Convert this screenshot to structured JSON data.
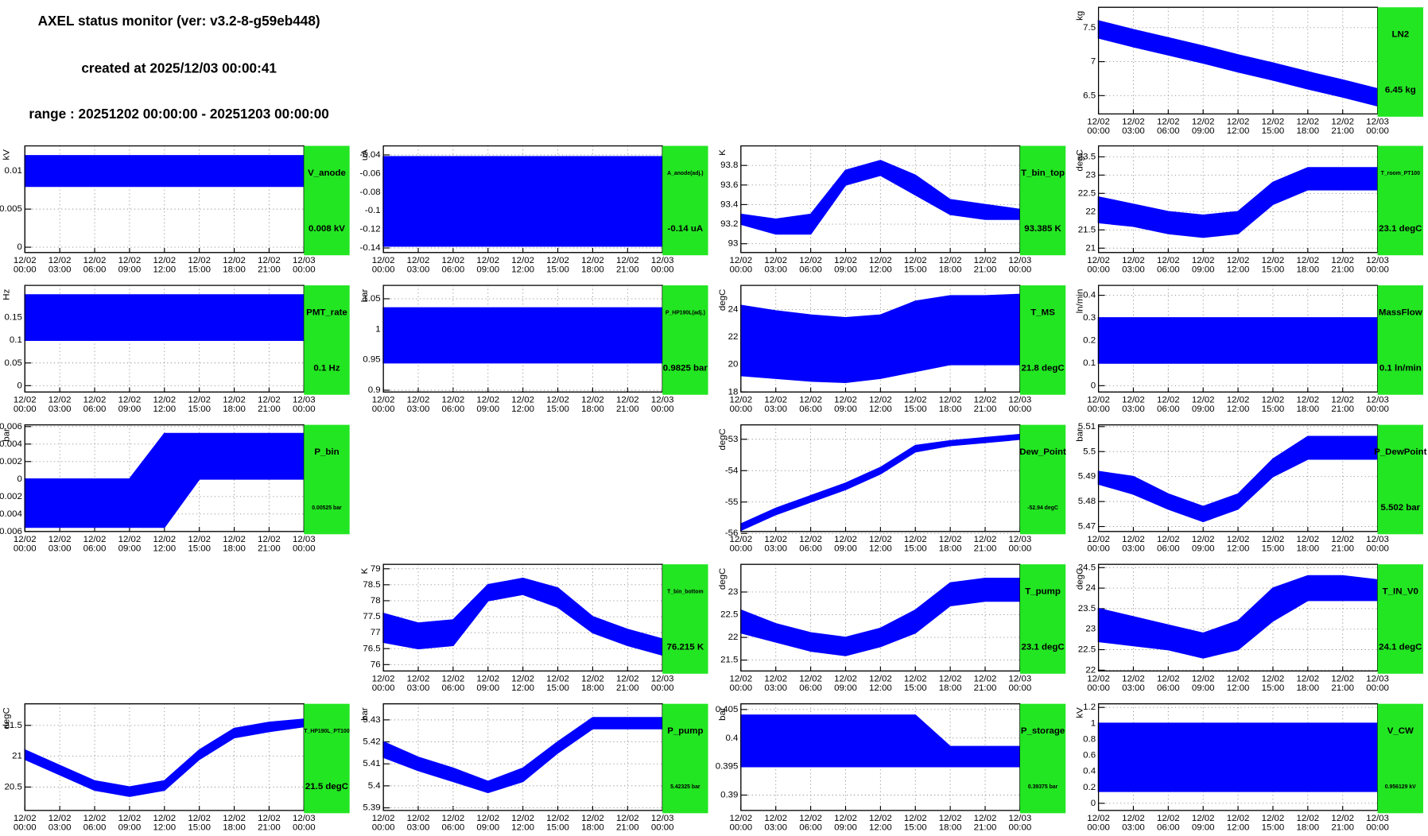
{
  "header": {
    "title": "AXEL status monitor (ver: v3.2-8-g59eb448)",
    "created": "created at 2025/12/03 00:00:41",
    "range": "range : 20251202 00:00:00 - 20251203 00:00:00"
  },
  "time_axis": {
    "xlim": [
      0,
      24
    ],
    "x": [
      0,
      3,
      6,
      9,
      12,
      15,
      18,
      21,
      24
    ],
    "xticks": [
      {
        "value": 0,
        "date": "12/02",
        "time": "00:00"
      },
      {
        "value": 3,
        "date": "12/02",
        "time": "03:00"
      },
      {
        "value": 6,
        "date": "12/02",
        "time": "06:00"
      },
      {
        "value": 9,
        "date": "12/02",
        "time": "09:00"
      },
      {
        "value": 12,
        "date": "12/02",
        "time": "12:00"
      },
      {
        "value": 15,
        "date": "12/02",
        "time": "15:00"
      },
      {
        "value": 18,
        "date": "12/02",
        "time": "18:00"
      },
      {
        "value": 21,
        "date": "12/02",
        "time": "21:00"
      },
      {
        "value": 24,
        "date": "12/03",
        "time": "00:00"
      }
    ]
  },
  "chart_data": [
    {
      "type": "band",
      "name": "LN2",
      "value_label": "6.45 kg",
      "unit": "kg",
      "color": "#0000ff",
      "status_color": "#22e622",
      "ylim": [
        6.23,
        7.8
      ],
      "yticks": [
        6.5,
        7,
        7.5
      ],
      "low": [
        7.35,
        7.22,
        7.1,
        6.98,
        6.85,
        6.73,
        6.6,
        6.48,
        6.35
      ],
      "high": [
        7.6,
        7.47,
        7.35,
        7.23,
        7.1,
        6.98,
        6.85,
        6.73,
        6.6
      ]
    },
    {
      "type": "band",
      "name": "V_anode",
      "value_label": "0.008 kV",
      "unit": "kV",
      "color": "#0000ff",
      "status_color": "#22e622",
      "ylim": [
        -0.0007,
        0.0133
      ],
      "yticks": [
        0,
        0.005,
        0.01
      ],
      "low": [
        0.008,
        0.008,
        0.008,
        0.008,
        0.008,
        0.008,
        0.008,
        0.008,
        0.008
      ],
      "high": [
        0.012,
        0.012,
        0.012,
        0.012,
        0.012,
        0.012,
        0.012,
        0.012,
        0.012
      ]
    },
    {
      "type": "band",
      "name": "A_anode(adj.)",
      "value_label": "-0.14 uA",
      "unit": "uA",
      "color": "#0000ff",
      "status_color": "#22e622",
      "ylim": [
        -0.1449,
        -0.0303
      ],
      "yticks": [
        -0.14,
        -0.12,
        -0.1,
        -0.08,
        -0.06,
        -0.04
      ],
      "low": [
        -0.138,
        -0.138,
        -0.138,
        -0.138,
        -0.138,
        -0.138,
        -0.138,
        -0.138,
        -0.138
      ],
      "high": [
        -0.042,
        -0.042,
        -0.042,
        -0.042,
        -0.042,
        -0.042,
        -0.042,
        -0.042,
        -0.042
      ]
    },
    {
      "type": "band",
      "name": "T_bin_top",
      "value_label": "93.385 K",
      "unit": "K",
      "color": "#0000ff",
      "status_color": "#22e622",
      "ylim": [
        92.91,
        94.0
      ],
      "yticks": [
        93,
        93.2,
        93.4,
        93.6,
        93.8
      ],
      "low": [
        93.2,
        93.1,
        93.1,
        93.6,
        93.7,
        93.5,
        93.3,
        93.25,
        93.25
      ],
      "high": [
        93.3,
        93.25,
        93.3,
        93.75,
        93.85,
        93.7,
        93.45,
        93.4,
        93.35
      ]
    },
    {
      "type": "band",
      "name": "T_room_PT100",
      "value_label": "23.1 degC",
      "unit": "degC",
      "color": "#0000ff",
      "status_color": "#22e622",
      "ylim": [
        20.88,
        23.8
      ],
      "yticks": [
        21,
        21.5,
        22,
        22.5,
        23,
        23.5
      ],
      "low": [
        21.7,
        21.6,
        21.4,
        21.3,
        21.4,
        22.2,
        22.6,
        22.6,
        22.6
      ],
      "high": [
        22.4,
        22.2,
        22.0,
        21.9,
        22.0,
        22.8,
        23.2,
        23.2,
        23.2
      ]
    },
    {
      "type": "band",
      "name": "PMT_rate",
      "value_label": "0.1 Hz",
      "unit": "Hz",
      "color": "#0000ff",
      "status_color": "#22e622",
      "ylim": [
        -0.014,
        0.221
      ],
      "yticks": [
        0,
        0.05,
        0.1,
        0.15
      ],
      "low": [
        0.1,
        0.1,
        0.1,
        0.1,
        0.1,
        0.1,
        0.1,
        0.1,
        0.1
      ],
      "high": [
        0.2,
        0.2,
        0.2,
        0.2,
        0.2,
        0.2,
        0.2,
        0.2,
        0.2
      ]
    },
    {
      "type": "band",
      "name": "P_HP190L(adj.)",
      "value_label": "0.9825 bar",
      "unit": "bar",
      "color": "#0000ff",
      "status_color": "#22e622",
      "ylim": [
        0.897,
        1.072
      ],
      "yticks": [
        0.9,
        0.95,
        1,
        1.05
      ],
      "low": [
        0.945,
        0.945,
        0.945,
        0.945,
        0.945,
        0.945,
        0.945,
        0.945,
        0.945
      ],
      "high": [
        1.035,
        1.035,
        1.035,
        1.035,
        1.035,
        1.035,
        1.035,
        1.035,
        1.035
      ]
    },
    {
      "type": "band",
      "name": "T_MS",
      "value_label": "21.8 degC",
      "unit": "degC",
      "color": "#0000ff",
      "status_color": "#22e622",
      "ylim": [
        18,
        25.76
      ],
      "yticks": [
        18,
        20,
        22,
        24
      ],
      "low": [
        19.2,
        19.0,
        18.8,
        18.7,
        19.0,
        19.5,
        20.0,
        20.0,
        20.0
      ],
      "high": [
        24.3,
        23.9,
        23.6,
        23.4,
        23.6,
        24.6,
        25.0,
        25.0,
        25.1
      ]
    },
    {
      "type": "band",
      "name": "MassFlow",
      "value_label": "0.1 ln/min",
      "unit": "ln/min",
      "color": "#0000ff",
      "status_color": "#22e622",
      "ylim": [
        -0.028,
        0.444
      ],
      "yticks": [
        0,
        0.1,
        0.2,
        0.3,
        0.4
      ],
      "low": [
        0.1,
        0.1,
        0.1,
        0.1,
        0.1,
        0.1,
        0.1,
        0.1,
        0.1
      ],
      "high": [
        0.3,
        0.3,
        0.3,
        0.3,
        0.3,
        0.3,
        0.3,
        0.3,
        0.3
      ]
    },
    {
      "type": "band",
      "name": "P_bin",
      "value_label": "0.00525 bar",
      "unit": "bar",
      "color": "#0000ff",
      "status_color": "#22e622",
      "ylim": [
        -0.006,
        0.0062
      ],
      "yticks": [
        -0.006,
        -0.004,
        -0.002,
        0,
        0.002,
        0.004,
        0.006
      ],
      "low": [
        -0.0055,
        -0.0055,
        -0.0055,
        -0.0055,
        -0.0055,
        0,
        0,
        0,
        0
      ],
      "high": [
        0,
        0,
        0,
        0,
        0.0052,
        0.0052,
        0.0052,
        0.0052,
        0.0052
      ]
    },
    {
      "type": "band",
      "name": "Dew_Point",
      "value_label": "-52.94 degC",
      "unit": "degC",
      "color": "#0000ff",
      "status_color": "#22e622",
      "ylim": [
        -55.94,
        -52.54
      ],
      "yticks": [
        -56,
        -55,
        -54,
        -53
      ],
      "low": [
        -55.9,
        -55.4,
        -55.0,
        -54.6,
        -54.1,
        -53.4,
        -53.2,
        -53.1,
        -53.0
      ],
      "high": [
        -55.7,
        -55.2,
        -54.8,
        -54.4,
        -53.9,
        -53.2,
        -53.05,
        -52.95,
        -52.85
      ]
    },
    {
      "type": "band",
      "name": "P_DewPoint",
      "value_label": "5.502 bar",
      "unit": "bar",
      "color": "#0000ff",
      "status_color": "#22e622",
      "ylim": [
        5.468,
        5.5107
      ],
      "yticks": [
        5.47,
        5.48,
        5.49,
        5.5,
        5.51
      ],
      "low": [
        5.487,
        5.483,
        5.477,
        5.472,
        5.477,
        5.49,
        5.497,
        5.497,
        5.497
      ],
      "high": [
        5.492,
        5.49,
        5.483,
        5.478,
        5.483,
        5.497,
        5.506,
        5.506,
        5.506
      ]
    },
    {
      "type": "band",
      "name": "T_bin_bottom",
      "value_label": "76.215 K",
      "unit": "K",
      "color": "#0000ff",
      "status_color": "#22e622",
      "ylim": [
        75.8,
        79.14
      ],
      "yticks": [
        76,
        76.5,
        77,
        77.5,
        78,
        78.5,
        79
      ],
      "low": [
        76.7,
        76.5,
        76.6,
        78.0,
        78.2,
        77.8,
        77.0,
        76.6,
        76.3
      ],
      "high": [
        77.6,
        77.3,
        77.4,
        78.5,
        78.7,
        78.4,
        77.5,
        77.1,
        76.8
      ]
    },
    {
      "type": "band",
      "name": "T_pump",
      "value_label": "23.1 degC",
      "unit": "degC",
      "color": "#0000ff",
      "status_color": "#22e622",
      "ylim": [
        21.26,
        23.61
      ],
      "yticks": [
        21.5,
        22,
        22.5,
        23
      ],
      "low": [
        22.1,
        21.9,
        21.7,
        21.6,
        21.8,
        22.1,
        22.7,
        22.8,
        22.8
      ],
      "high": [
        22.6,
        22.3,
        22.1,
        22.0,
        22.2,
        22.6,
        23.2,
        23.3,
        23.3
      ]
    },
    {
      "type": "band",
      "name": "T_IN_V0",
      "value_label": "24.1 degC",
      "unit": "degC",
      "color": "#0000ff",
      "status_color": "#22e622",
      "ylim": [
        21.98,
        24.58
      ],
      "yticks": [
        22,
        22.5,
        23,
        23.5,
        24,
        24.5
      ],
      "low": [
        22.7,
        22.6,
        22.5,
        22.3,
        22.5,
        23.2,
        23.7,
        23.7,
        23.7
      ],
      "high": [
        23.5,
        23.3,
        23.1,
        22.9,
        23.2,
        24.0,
        24.3,
        24.3,
        24.2
      ]
    },
    {
      "type": "band",
      "name": "T_HP190L_PT100",
      "value_label": "21.5 degC",
      "unit": "degC",
      "color": "#0000ff",
      "status_color": "#22e622",
      "ylim": [
        20.12,
        21.85
      ],
      "yticks": [
        20.5,
        21,
        21.5
      ],
      "low": [
        20.95,
        20.7,
        20.45,
        20.35,
        20.45,
        20.95,
        21.3,
        21.4,
        21.48
      ],
      "high": [
        21.1,
        20.85,
        20.6,
        20.5,
        20.6,
        21.1,
        21.45,
        21.55,
        21.6
      ]
    },
    {
      "type": "band",
      "name": "P_pump",
      "value_label": "5.42325 bar",
      "unit": "bar",
      "color": "#0000ff",
      "status_color": "#22e622",
      "ylim": [
        5.3888,
        5.4373
      ],
      "yticks": [
        5.39,
        5.4,
        5.41,
        5.42,
        5.43
      ],
      "low": [
        5.413,
        5.407,
        5.402,
        5.397,
        5.402,
        5.415,
        5.426,
        5.426,
        5.426
      ],
      "high": [
        5.42,
        5.413,
        5.408,
        5.402,
        5.408,
        5.42,
        5.431,
        5.431,
        5.431
      ]
    },
    {
      "type": "band",
      "name": "P_storage",
      "value_label": "0.39375 bar",
      "unit": "bar",
      "color": "#0000ff",
      "status_color": "#22e622",
      "ylim": [
        0.3873,
        0.406
      ],
      "yticks": [
        0.39,
        0.395,
        0.4,
        0.405
      ],
      "low": [
        0.395,
        0.395,
        0.395,
        0.395,
        0.395,
        0.395,
        0.395,
        0.395,
        0.395
      ],
      "high": [
        0.404,
        0.404,
        0.404,
        0.404,
        0.404,
        0.404,
        0.3985,
        0.3985,
        0.3985
      ]
    },
    {
      "type": "band",
      "name": "V_CW",
      "value_label": "0.956129 kV",
      "unit": "kV",
      "color": "#0000ff",
      "status_color": "#22e622",
      "ylim": [
        -0.09,
        1.245
      ],
      "yticks": [
        0,
        0.2,
        0.4,
        0.6,
        0.8,
        1,
        1.2
      ],
      "low": [
        0.15,
        0.15,
        0.15,
        0.15,
        0.15,
        0.15,
        0.15,
        0.15,
        0.15
      ],
      "high": [
        1,
        1,
        1,
        1,
        1,
        1,
        1,
        1,
        1
      ]
    }
  ]
}
